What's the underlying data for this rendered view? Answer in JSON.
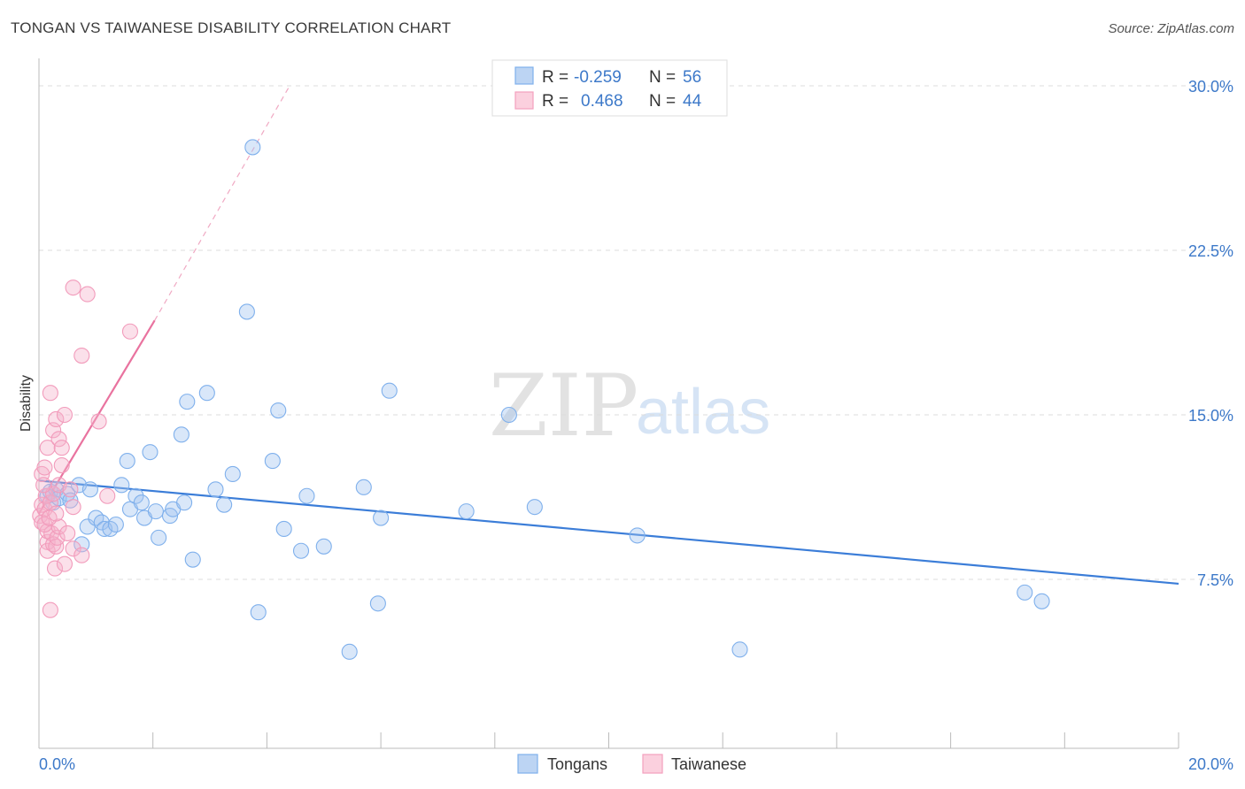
{
  "header": {
    "title": "TONGAN VS TAIWANESE DISABILITY CORRELATION CHART",
    "source": "Source: ZipAtlas.com"
  },
  "watermark": {
    "zip": "ZIP",
    "atlas": "atlas"
  },
  "legend_top": {
    "rows": [
      {
        "r_label": "R =",
        "r_value": "-0.259",
        "n_label": "N =",
        "n_value": "56",
        "color": "#7fb0ec"
      },
      {
        "r_label": "R =",
        "r_value": "0.468",
        "n_label": "N =",
        "n_value": "44",
        "color": "#f4a0bd"
      }
    ]
  },
  "legend_bottom": [
    {
      "label": "Tongans",
      "color": "#7fb0ec"
    },
    {
      "label": "Taiwanese",
      "color": "#f4a0bd"
    }
  ],
  "chart_data": {
    "type": "scatter",
    "title": "TONGAN VS TAIWANESE DISABILITY CORRELATION CHART",
    "xlabel": "",
    "ylabel": "Disability",
    "xlim": [
      0,
      20
    ],
    "ylim": [
      0,
      31.5
    ],
    "x_tick_labels": [
      "0.0%",
      "20.0%"
    ],
    "y_ticks": [
      7.5,
      15.0,
      22.5,
      30.0
    ],
    "y_tick_labels": [
      "7.5%",
      "15.0%",
      "22.5%",
      "30.0%"
    ],
    "grid": "horizontal dashed",
    "legend_placement": "top-center and bottom",
    "colors": {
      "tongans": "#3b7dd8",
      "taiwanese": "#e9739f"
    },
    "series": [
      {
        "name": "Tongans",
        "color": "#7fb0ec",
        "trend": {
          "x": [
            0,
            20
          ],
          "y": [
            12.0,
            7.3
          ]
        },
        "points": [
          [
            0.15,
            11.3
          ],
          [
            0.2,
            11.5
          ],
          [
            0.25,
            11.0
          ],
          [
            0.3,
            11.6
          ],
          [
            0.35,
            11.2
          ],
          [
            0.5,
            11.4
          ],
          [
            0.55,
            11.1
          ],
          [
            0.7,
            11.8
          ],
          [
            0.75,
            9.1
          ],
          [
            0.85,
            9.9
          ],
          [
            0.9,
            11.6
          ],
          [
            1.0,
            10.3
          ],
          [
            1.1,
            10.1
          ],
          [
            1.15,
            9.8
          ],
          [
            1.25,
            9.8
          ],
          [
            1.35,
            10.0
          ],
          [
            1.45,
            11.8
          ],
          [
            1.55,
            12.9
          ],
          [
            1.6,
            10.7
          ],
          [
            1.7,
            11.3
          ],
          [
            1.8,
            11.0
          ],
          [
            1.85,
            10.3
          ],
          [
            1.95,
            13.3
          ],
          [
            2.05,
            10.6
          ],
          [
            2.1,
            9.4
          ],
          [
            2.3,
            10.4
          ],
          [
            2.35,
            10.7
          ],
          [
            2.5,
            14.1
          ],
          [
            2.55,
            11.0
          ],
          [
            2.6,
            15.6
          ],
          [
            2.7,
            8.4
          ],
          [
            2.95,
            16.0
          ],
          [
            3.1,
            11.6
          ],
          [
            3.25,
            10.9
          ],
          [
            3.4,
            12.3
          ],
          [
            3.65,
            19.7
          ],
          [
            3.75,
            27.2
          ],
          [
            3.85,
            6.0
          ],
          [
            4.1,
            12.9
          ],
          [
            4.2,
            15.2
          ],
          [
            4.3,
            9.8
          ],
          [
            4.6,
            8.8
          ],
          [
            4.7,
            11.3
          ],
          [
            5.0,
            9.0
          ],
          [
            5.45,
            4.2
          ],
          [
            5.7,
            11.7
          ],
          [
            5.95,
            6.4
          ],
          [
            6.0,
            10.3
          ],
          [
            6.15,
            16.1
          ],
          [
            7.5,
            10.6
          ],
          [
            8.25,
            15.0
          ],
          [
            8.7,
            10.8
          ],
          [
            10.5,
            9.5
          ],
          [
            12.3,
            4.3
          ],
          [
            17.3,
            6.9
          ],
          [
            17.6,
            6.5
          ]
        ]
      },
      {
        "name": "Taiwanese",
        "color": "#f4a0bd",
        "trend": {
          "x": [
            0,
            2.03
          ],
          "y": [
            10.5,
            19.3
          ]
        },
        "trend_extended": {
          "x": [
            2.03,
            4.4
          ],
          "y": [
            19.3,
            30.0
          ]
        },
        "points": [
          [
            0.02,
            10.4
          ],
          [
            0.05,
            10.9
          ],
          [
            0.05,
            12.3
          ],
          [
            0.05,
            10.1
          ],
          [
            0.1,
            10.7
          ],
          [
            0.1,
            12.6
          ],
          [
            0.12,
            11.3
          ],
          [
            0.15,
            9.2
          ],
          [
            0.15,
            13.5
          ],
          [
            0.15,
            8.8
          ],
          [
            0.15,
            9.7
          ],
          [
            0.2,
            11.0
          ],
          [
            0.2,
            16.0
          ],
          [
            0.2,
            6.1
          ],
          [
            0.22,
            9.6
          ],
          [
            0.25,
            11.4
          ],
          [
            0.25,
            14.3
          ],
          [
            0.25,
            9.1
          ],
          [
            0.28,
            8.0
          ],
          [
            0.3,
            14.8
          ],
          [
            0.3,
            9.0
          ],
          [
            0.32,
            9.4
          ],
          [
            0.35,
            9.9
          ],
          [
            0.35,
            13.9
          ],
          [
            0.35,
            11.8
          ],
          [
            0.4,
            12.7
          ],
          [
            0.4,
            13.5
          ],
          [
            0.45,
            8.2
          ],
          [
            0.45,
            15.0
          ],
          [
            0.5,
            9.6
          ],
          [
            0.55,
            11.6
          ],
          [
            0.6,
            10.8
          ],
          [
            0.6,
            8.9
          ],
          [
            0.6,
            20.8
          ],
          [
            0.75,
            17.7
          ],
          [
            0.75,
            8.6
          ],
          [
            0.85,
            20.5
          ],
          [
            1.05,
            14.7
          ],
          [
            1.2,
            11.3
          ],
          [
            1.6,
            18.8
          ],
          [
            0.1,
            10.0
          ],
          [
            0.08,
            11.8
          ],
          [
            0.18,
            10.3
          ],
          [
            0.3,
            10.5
          ]
        ]
      }
    ]
  }
}
